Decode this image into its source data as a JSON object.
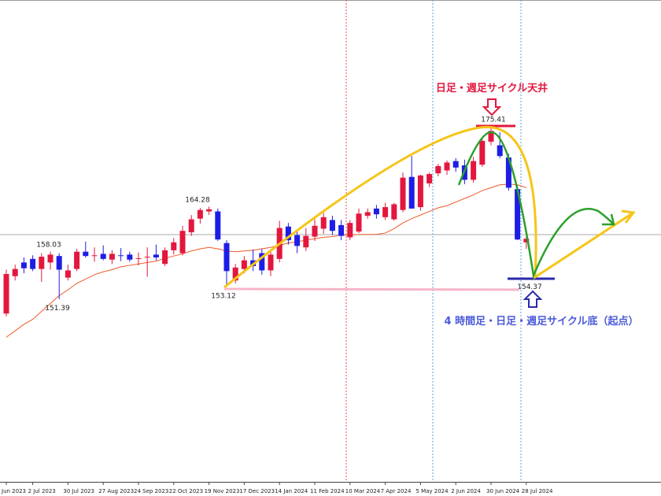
{
  "chart_data": {
    "type": "candlestick",
    "categories": [
      "Jun 2023",
      null,
      null,
      "2 Jul 2023",
      null,
      null,
      null,
      "30 Jul 2023",
      null,
      null,
      null,
      "27 Aug 2023",
      null,
      null,
      null,
      "24 Sep 2023",
      null,
      null,
      null,
      "22 Oct 2023",
      null,
      null,
      null,
      "19 Nov 2023",
      null,
      null,
      null,
      "17 Dec 2023",
      null,
      null,
      null,
      "14 Jan 2024",
      null,
      null,
      null,
      "11 Feb 2024",
      null,
      null,
      null,
      "10 Mar 2024",
      null,
      null,
      null,
      "7 Apr 2024",
      null,
      null,
      null,
      "5 May 2024",
      null,
      null,
      null,
      "2 Jun 2024",
      null,
      null,
      null,
      "30 Jun 2024",
      null,
      null,
      null,
      "28 Jul 2024"
    ],
    "open": [
      149.4,
      154.6,
      156.5,
      157.0,
      155.6,
      156.5,
      157.4,
      154.4,
      155.6,
      158.0,
      157.5,
      157.7,
      156.9,
      157.5,
      157.6,
      157.0,
      157.2,
      157.6,
      156.3,
      158.2,
      157.8,
      160.7,
      162.6,
      163.6,
      163.6,
      159.2,
      154.0,
      155.6,
      156.8,
      157.8,
      155.4,
      157.0,
      161.5,
      160.3,
      158.6,
      160.1,
      161.2,
      162.4,
      161.7,
      160.0,
      160.8,
      163.0,
      164.0,
      162.8,
      162.5,
      163.8,
      168.4,
      164.2,
      167.5,
      168.9,
      169.3,
      170.6,
      170.0,
      168.0,
      170.1,
      173.3,
      172.8,
      171.1,
      166.7,
      159.3
    ],
    "high": [
      155.5,
      156.2,
      157.2,
      157.5,
      157.8,
      158.03,
      157.8,
      156.2,
      158.4,
      159.4,
      158.6,
      158.9,
      158.2,
      158.5,
      158.0,
      157.9,
      158.6,
      159.0,
      158.6,
      159.9,
      161.6,
      163.1,
      164.1,
      164.28,
      164.0,
      159.6,
      156.3,
      157.4,
      158.3,
      158.4,
      158.0,
      162.3,
      162.0,
      160.8,
      161.3,
      162.5,
      163.4,
      163.0,
      162.4,
      162.4,
      164.0,
      164.0,
      164.5,
      164.8,
      164.8,
      169.0,
      171.3,
      168.7,
      169.0,
      170.2,
      170.7,
      171.0,
      170.8,
      171.2,
      173.9,
      175.41,
      174.6,
      171.6,
      167.2,
      160.1
    ],
    "low": [
      149.0,
      154.0,
      155.0,
      155.3,
      153.8,
      155.5,
      151.39,
      154.0,
      155.3,
      157.2,
      156.6,
      156.8,
      156.3,
      156.7,
      156.6,
      156.1,
      154.5,
      156.8,
      156.0,
      157.6,
      157.5,
      160.2,
      161.9,
      163.1,
      159.5,
      153.12,
      153.6,
      155.0,
      155.3,
      154.8,
      154.6,
      156.5,
      159.0,
      157.8,
      158.1,
      159.5,
      160.5,
      160.3,
      159.6,
      159.6,
      160.6,
      162.6,
      162.6,
      162.4,
      162.3,
      163.5,
      164.0,
      163.7,
      167.0,
      168.5,
      168.7,
      169.1,
      167.4,
      167.6,
      169.8,
      172.8,
      171.0,
      166.5,
      159.6,
      158.4
    ],
    "close": [
      154.9,
      155.6,
      155.7,
      155.6,
      157.3,
      157.6,
      155.5,
      155.4,
      158.0,
      157.4,
      157.5,
      157.0,
      157.7,
      157.4,
      156.9,
      157.1,
      157.3,
      157.2,
      158.2,
      159.3,
      160.9,
      162.5,
      163.8,
      163.9,
      159.7,
      155.3,
      155.8,
      156.8,
      156.0,
      155.4,
      157.6,
      161.3,
      159.6,
      158.8,
      160.2,
      161.6,
      162.8,
      160.9,
      160.2,
      162.0,
      163.3,
      163.5,
      163.2,
      164.2,
      164.6,
      168.3,
      164.0,
      168.6,
      168.8,
      169.9,
      170.4,
      169.7,
      168.0,
      170.6,
      173.4,
      174.8,
      171.3,
      166.9,
      159.7,
      159.8
    ],
    "ma": [
      146.1,
      147.0,
      147.9,
      148.6,
      149.7,
      150.8,
      151.9,
      152.7,
      153.6,
      154.2,
      154.8,
      155.2,
      155.5,
      155.9,
      156.1,
      156.3,
      156.5,
      156.7,
      157.1,
      157.4,
      157.7,
      158.1,
      158.4,
      158.6,
      158.4,
      158.1,
      158.0,
      158.1,
      158.2,
      158.4,
      158.6,
      158.9,
      159.2,
      159.4,
      159.6,
      159.8,
      160.0,
      160.1,
      160.3,
      160.3,
      160.4,
      160.4,
      160.4,
      160.6,
      161.2,
      162.0,
      162.6,
      163.1,
      163.6,
      164.1,
      164.4,
      164.9,
      165.4,
      165.9,
      166.5,
      166.9,
      167.3,
      167.4,
      167.3,
      166.9
    ],
    "up_color": "#e3173e",
    "down_color": "#1d1de6",
    "ma_color": "#f05a28",
    "ylim": [
      126,
      193
    ],
    "price_labels": [
      158.03,
      151.39,
      164.28,
      153.12,
      175.41,
      154.37
    ],
    "top_annotation": "日足・週足サイクル天井",
    "bottom_annotation": "4 時間足・日足・週足サイクル底（起点）"
  }
}
